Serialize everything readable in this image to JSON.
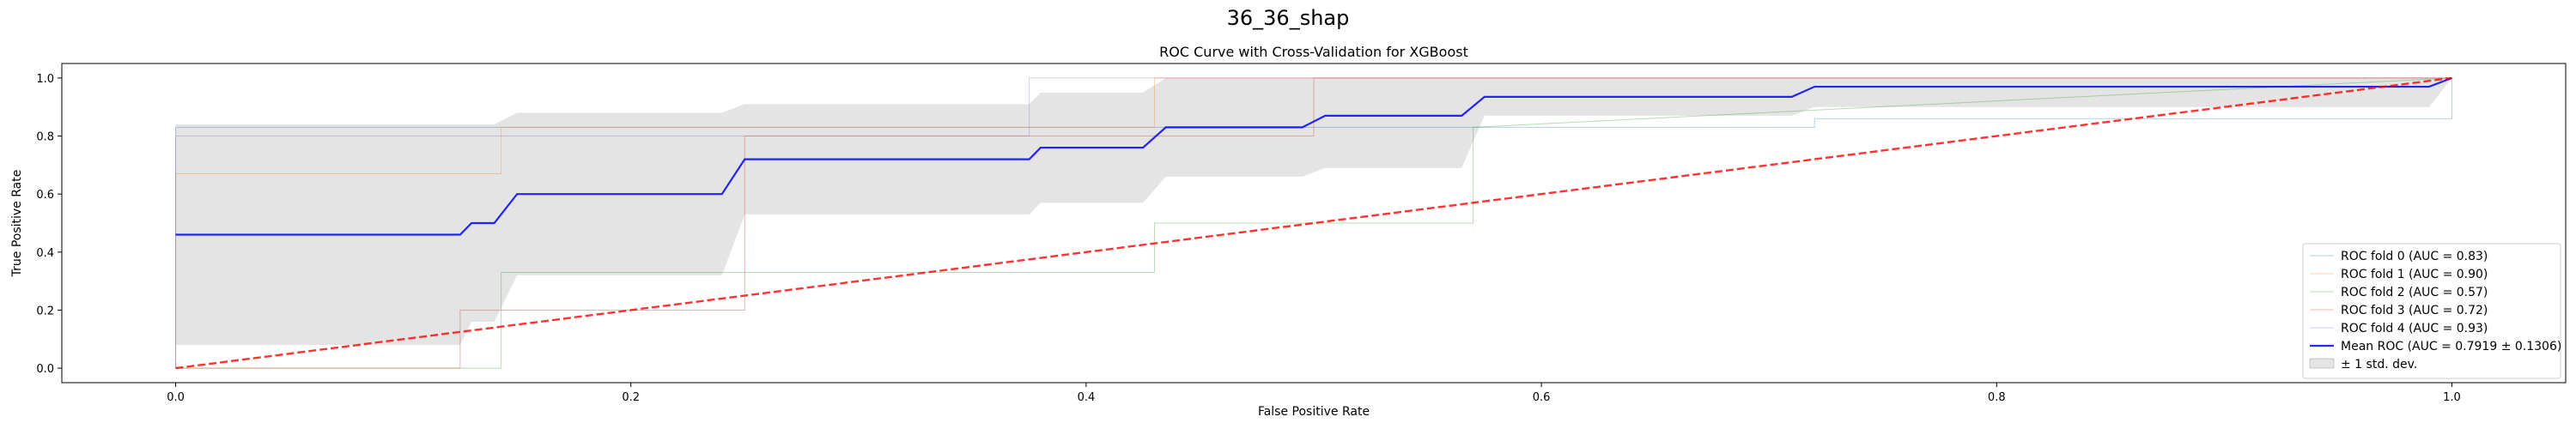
{
  "figure": {
    "suptitle": "36_36_shap"
  },
  "chart_data": {
    "type": "line",
    "title": "ROC Curve with Cross-Validation for XGBoost",
    "xlabel": "False Positive Rate",
    "ylabel": "True Positive Rate",
    "xlim": [
      -0.05,
      1.05
    ],
    "ylim": [
      -0.05,
      1.05
    ],
    "xticks": [
      "0.0",
      "0.2",
      "0.4",
      "0.6",
      "0.8",
      "1.0"
    ],
    "yticks": [
      "0.0",
      "0.2",
      "0.4",
      "0.6",
      "0.8",
      "1.0"
    ],
    "grid": false,
    "legend_position": "lower-right",
    "series": [
      {
        "name": "ROC fold 0 (AUC = 0.83)",
        "color": "#1f77b4",
        "x": [
          0.0,
          0.0,
          0.14,
          0.14,
          0.72,
          0.72,
          1.0,
          1.0
        ],
        "y": [
          0.0,
          0.83,
          0.83,
          0.83,
          0.83,
          0.86,
          0.86,
          1.0
        ]
      },
      {
        "name": "ROC fold 1 (AUC = 0.90)",
        "color": "#ff7f0e",
        "x": [
          0.0,
          0.0,
          0.143,
          0.143,
          0.43,
          0.43,
          0.43,
          1.0
        ],
        "y": [
          0.0,
          0.67,
          0.67,
          0.83,
          0.83,
          0.83,
          1.0,
          1.0
        ]
      },
      {
        "name": "ROC fold 2 (AUC = 0.57)",
        "color": "#2ca02c",
        "x": [
          0.0,
          0.0,
          0.143,
          0.143,
          0.43,
          0.43,
          0.57,
          0.57,
          1.0
        ],
        "y": [
          0.0,
          0.0,
          0.0,
          0.33,
          0.33,
          0.5,
          0.5,
          0.83,
          1.0
        ]
      },
      {
        "name": "ROC fold 3 (AUC = 0.72)",
        "color": "#d62728",
        "x": [
          0.0,
          0.125,
          0.125,
          0.25,
          0.25,
          0.375,
          0.375,
          0.5,
          0.5,
          1.0
        ],
        "y": [
          0.0,
          0.0,
          0.2,
          0.2,
          0.8,
          0.8,
          0.8,
          0.8,
          1.0,
          1.0
        ]
      },
      {
        "name": "ROC fold 4 (AUC = 0.93)",
        "color": "#9467bd",
        "x": [
          0.0,
          0.0,
          0.375,
          0.375,
          1.0
        ],
        "y": [
          0.0,
          0.8,
          0.8,
          1.0,
          1.0
        ]
      },
      {
        "name": "Mean ROC (AUC = 0.7919 ± 0.1306)",
        "color": "#0000ff",
        "x": [
          0.0,
          0.125,
          0.13,
          0.14,
          0.15,
          0.24,
          0.25,
          0.375,
          0.38,
          0.425,
          0.435,
          0.495,
          0.505,
          0.565,
          0.575,
          0.71,
          0.72,
          0.99,
          1.0
        ],
        "y": [
          0.46,
          0.46,
          0.5,
          0.5,
          0.6,
          0.6,
          0.72,
          0.72,
          0.76,
          0.76,
          0.83,
          0.83,
          0.87,
          0.87,
          0.935,
          0.935,
          0.97,
          0.97,
          1.0
        ]
      }
    ],
    "band": {
      "name": "± 1 std. dev.",
      "color": "#bbbbbb",
      "x": [
        0.0,
        0.125,
        0.13,
        0.14,
        0.15,
        0.24,
        0.25,
        0.375,
        0.38,
        0.425,
        0.435,
        0.495,
        0.505,
        0.565,
        0.575,
        0.71,
        0.72,
        0.99,
        1.0
      ],
      "upper": [
        0.84,
        0.84,
        0.84,
        0.84,
        0.88,
        0.88,
        0.91,
        0.91,
        0.95,
        0.95,
        1.0,
        1.0,
        1.0,
        1.0,
        1.0,
        1.0,
        1.0,
        1.0,
        1.0
      ],
      "lower": [
        0.08,
        0.08,
        0.16,
        0.16,
        0.32,
        0.32,
        0.53,
        0.53,
        0.57,
        0.57,
        0.66,
        0.66,
        0.69,
        0.69,
        0.87,
        0.87,
        0.9,
        0.9,
        1.0
      ]
    },
    "chance_line": {
      "color": "#ff0000",
      "x": [
        0.0,
        1.0
      ],
      "y": [
        0.0,
        1.0
      ]
    }
  }
}
